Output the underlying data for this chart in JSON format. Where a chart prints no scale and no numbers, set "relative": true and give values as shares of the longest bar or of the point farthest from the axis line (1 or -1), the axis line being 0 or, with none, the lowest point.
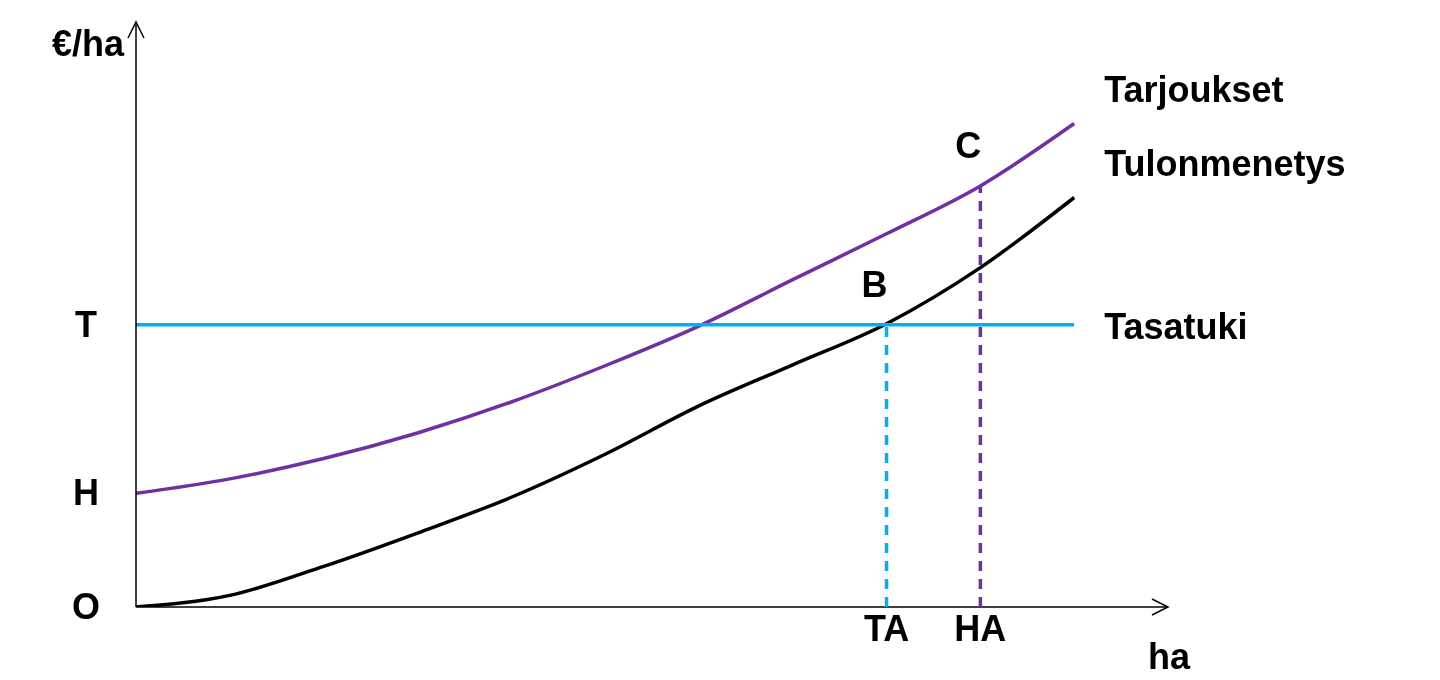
{
  "chart_data": {
    "type": "line",
    "xlabel": "ha",
    "ylabel": "€/ha",
    "relative": true,
    "categories": [
      null,
      null,
      null,
      null,
      null,
      null,
      null,
      null,
      "TA",
      "HA",
      null,
      null
    ],
    "grid": false,
    "legend": false,
    "marker": "none",
    "series": [
      {
        "name": "Tarjoukset",
        "color": "#7030a0",
        "values": [
          0.235,
          0.265,
          0.307,
          0.36,
          0.424,
          0.499,
          0.581,
          0.677,
          0.772,
          0.871,
          1,
          null
        ]
      },
      {
        "name": "Tulonmenetys",
        "color": "#000000",
        "values": [
          0,
          0.024,
          0.084,
          0.153,
          0.227,
          0.316,
          0.416,
          0.501,
          0.586,
          0.702,
          0.847,
          null
        ]
      },
      {
        "name": "Tasatuki",
        "color": "#00b0f0",
        "values": [
          0.584,
          0.584,
          0.584,
          0.584,
          0.584,
          0.584,
          0.584,
          0.584,
          0.584,
          0.584,
          0.584,
          null
        ]
      }
    ],
    "ref_lines": [
      {
        "axis": "x",
        "value": "TA",
        "color": "#00b0f0",
        "line_style": "dashed"
      },
      {
        "axis": "x",
        "value": "HA",
        "color": "#7030a0",
        "line_style": "dashed"
      }
    ],
    "annotations": [
      "T",
      "H",
      "O",
      {
        "text": "B",
        "x": "TA",
        "y": 0.584
      },
      {
        "text": "C",
        "x": "HA",
        "y": 0.871
      }
    ]
  }
}
